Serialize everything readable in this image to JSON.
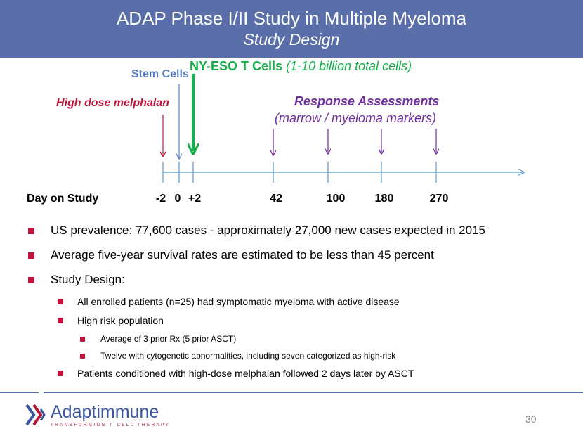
{
  "header": {
    "title": "ADAP Phase I/II Study in Multiple Myeloma",
    "subtitle": "Study Design"
  },
  "timeline": {
    "stem_cells": "Stem Cells",
    "nyeso_bold": "NY-ESO T Cells",
    "nyeso_paren": "(1-10 billion total cells)",
    "melphalan": "High dose melphalan",
    "response_title": "Response Assessments",
    "response_sub": "(marrow / myeloma markers)",
    "day_label": "Day on Study",
    "days": [
      "-2",
      "0",
      "+2",
      "42",
      "100",
      "180",
      "270"
    ]
  },
  "bullets": {
    "b1": "US prevalence: 77,600 cases - approximately 27,000 new cases expected in 2015",
    "b2": "Average five-year survival rates are estimated to be less than 45 percent",
    "b3": "Study Design:",
    "b3_1": "All enrolled patients (n=25) had symptomatic myeloma with active disease",
    "b3_2": "High risk population",
    "b3_2_1": "Average of 3 prior Rx (5 prior ASCT)",
    "b3_2_2": "Twelve with cytogenetic abnormalities, including seven categorized as high-risk",
    "b3_3": "Patients conditioned with high-dose melphalan followed 2 days later by ASCT"
  },
  "footer": {
    "logo_word": "Adaptimmune",
    "logo_tag": "TRANSFORMING T CELL THERAPY",
    "page_number": "30"
  },
  "colors": {
    "header_bg": "#5a6faa",
    "stem_blue": "#5b7fc6",
    "nyeso_green": "#14b04a",
    "melphalan_red": "#c0143c",
    "response_purple": "#7030a0",
    "bullet_red": "#c0143c"
  }
}
